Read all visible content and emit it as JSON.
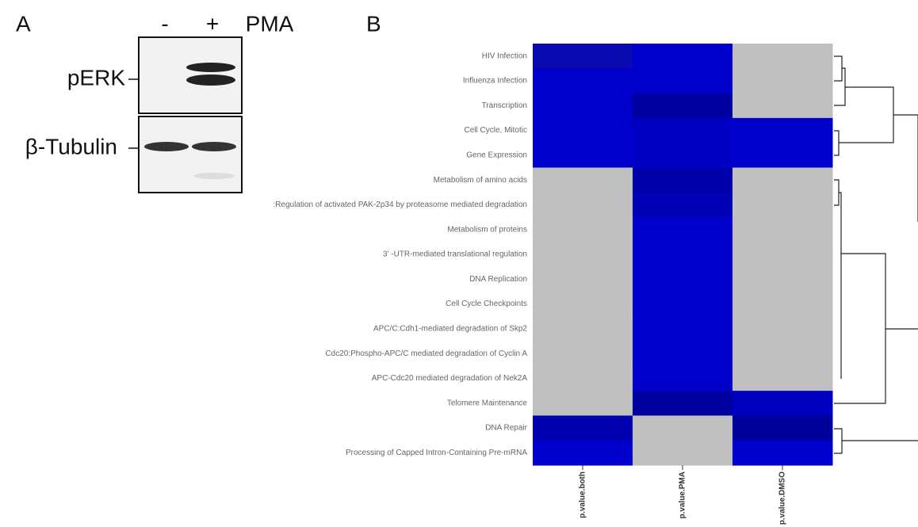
{
  "panel_a": {
    "label": "A",
    "conditions": [
      "-",
      "+"
    ],
    "treatment": "PMA",
    "blots": [
      "pERK",
      "β-Tubulin"
    ]
  },
  "panel_b": {
    "label": "B",
    "columns": [
      "p.value.both",
      "p.value.PMA",
      "p.value.DMSO"
    ],
    "rows": [
      {
        "label": "HIV Infection",
        "colors": [
          "#0a0ab0",
          "#0000cc",
          "#c0c0c0"
        ]
      },
      {
        "label": "Influenza Infection",
        "colors": [
          "#0000cc",
          "#0000cc",
          "#c0c0c0"
        ]
      },
      {
        "label": "Transcription",
        "colors": [
          "#0000cc",
          "#0000a0",
          "#c0c0c0"
        ]
      },
      {
        "label": "Cell Cycle, Mitotic",
        "colors": [
          "#0000cc",
          "#0000c4",
          "#0000cc"
        ]
      },
      {
        "label": "Gene Expression",
        "colors": [
          "#0000cc",
          "#0000c4",
          "#0000cc"
        ]
      },
      {
        "label": "Metabolism of amino acids",
        "colors": [
          "#c0c0c0",
          "#0000aa",
          "#c0c0c0"
        ]
      },
      {
        "label": ":Regulation of activated PAK-2p34 by proteasome mediated degradation",
        "colors": [
          "#c0c0c0",
          "#0000b4",
          "#c0c0c0"
        ]
      },
      {
        "label": "Metabolism of proteins",
        "colors": [
          "#c0c0c0",
          "#0000cc",
          "#c0c0c0"
        ]
      },
      {
        "label": "3' -UTR-mediated translational regulation",
        "colors": [
          "#c0c0c0",
          "#0000cc",
          "#c0c0c0"
        ]
      },
      {
        "label": "DNA Replication",
        "colors": [
          "#c0c0c0",
          "#0000cc",
          "#c0c0c0"
        ]
      },
      {
        "label": "Cell Cycle Checkpoints",
        "colors": [
          "#c0c0c0",
          "#0000cc",
          "#c0c0c0"
        ]
      },
      {
        "label": "APC/C:Cdh1-mediated degradation of Skp2",
        "colors": [
          "#c0c0c0",
          "#0000cc",
          "#c0c0c0"
        ]
      },
      {
        "label": "Cdc20:Phospho-APC/C mediated degradation of Cyclin A",
        "colors": [
          "#c0c0c0",
          "#0000cc",
          "#c0c0c0"
        ]
      },
      {
        "label": "APC-Cdc20 mediated degradation of Nek2A",
        "colors": [
          "#c0c0c0",
          "#0000cc",
          "#c0c0c0"
        ]
      },
      {
        "label": "Telomere Maintenance",
        "colors": [
          "#c0c0c0",
          "#0000a0",
          "#0000c0"
        ]
      },
      {
        "label": "DNA Repair",
        "colors": [
          "#0000b0",
          "#c0c0c0",
          "#00009c"
        ]
      },
      {
        "label": "Processing of Capped Intron-Containing Pre-mRNA",
        "colors": [
          "#0000cc",
          "#c0c0c0",
          "#0000cc"
        ]
      }
    ]
  }
}
